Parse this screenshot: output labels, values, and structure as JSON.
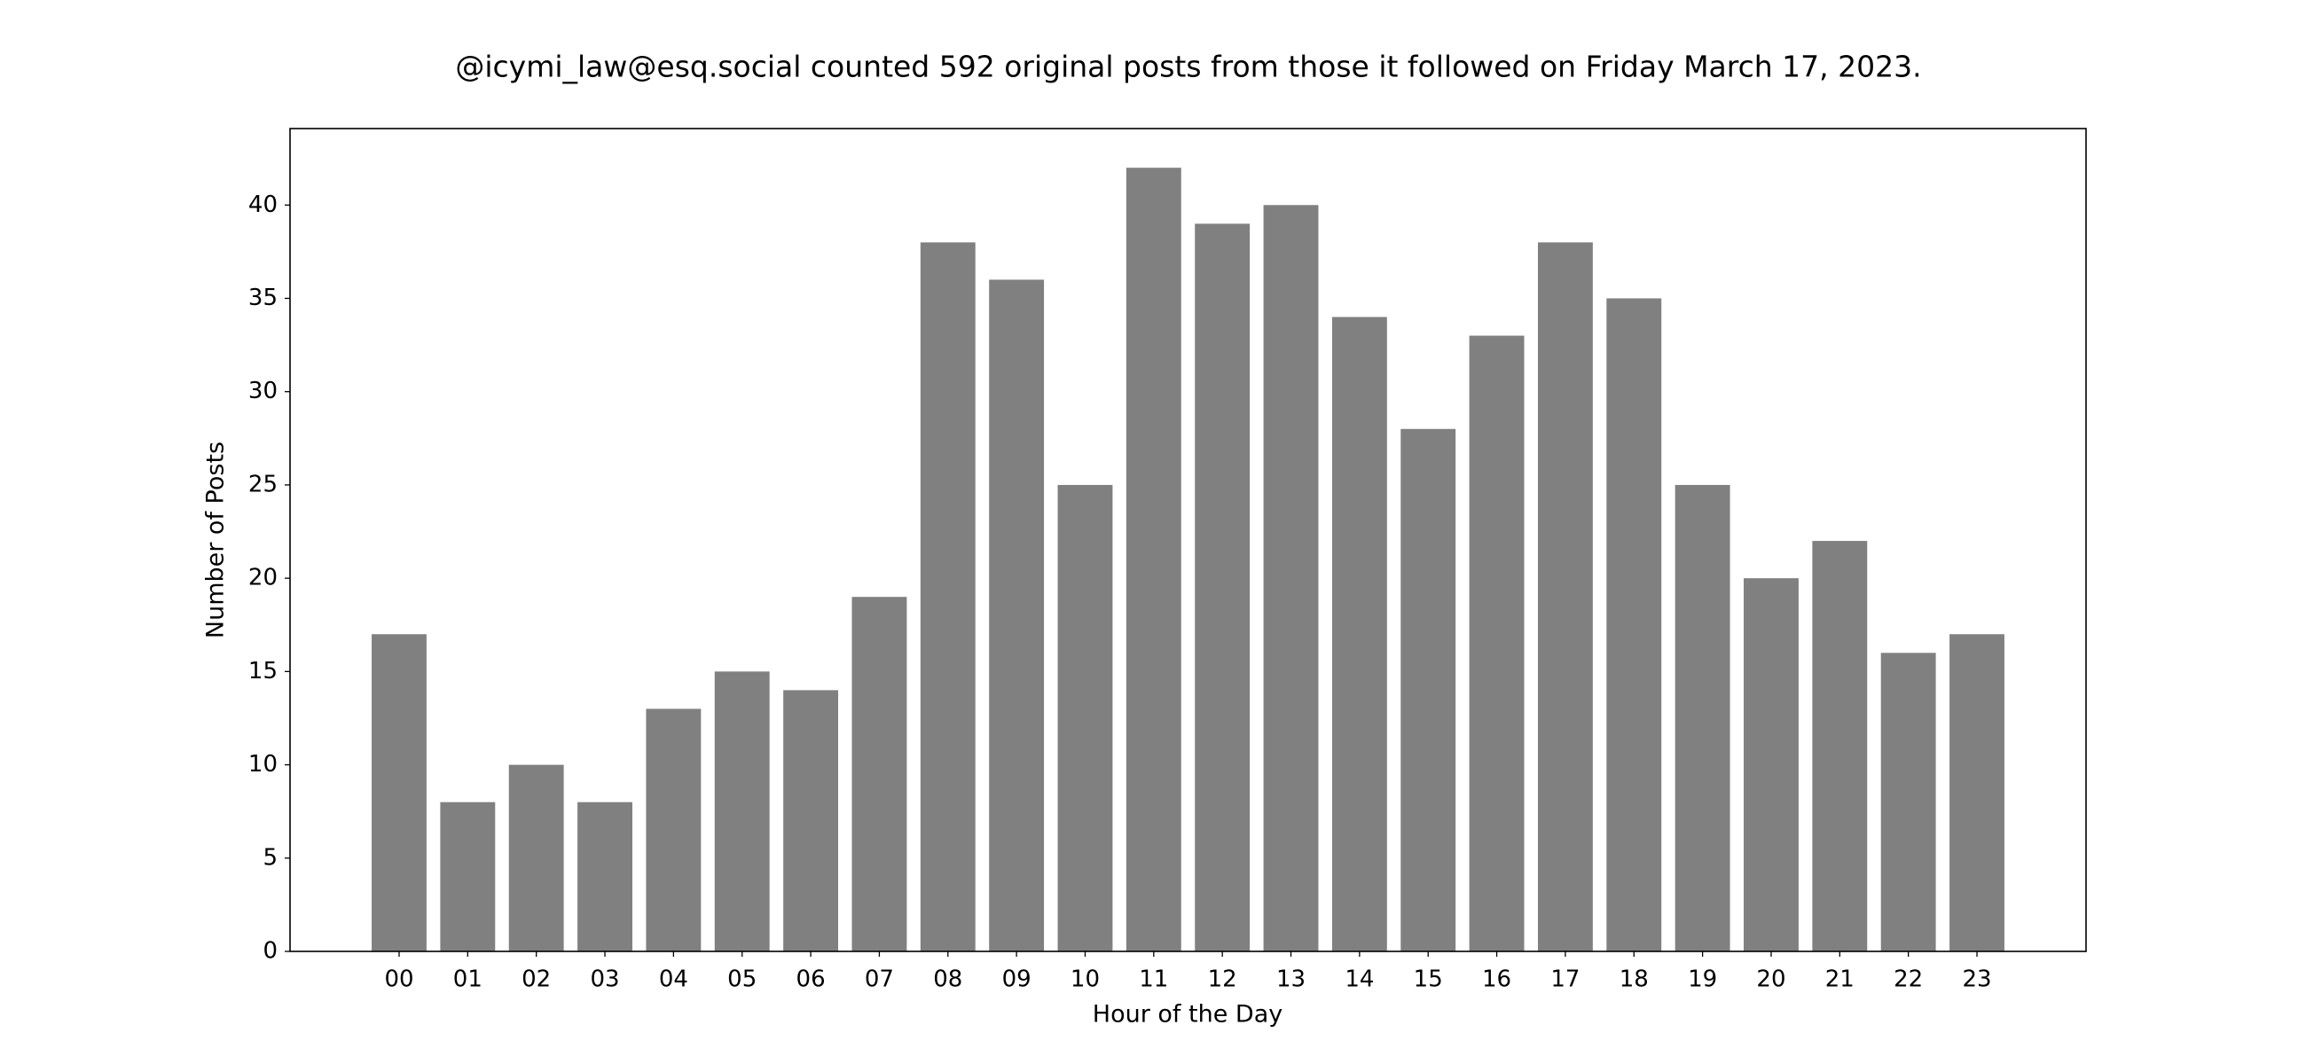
{
  "chart_data": {
    "type": "bar",
    "title": "@icymi_law@esq.social counted 592 original posts from those it followed on Friday March 17, 2023.",
    "xlabel": "Hour of the Day",
    "ylabel": "Number of Posts",
    "categories": [
      "00",
      "01",
      "02",
      "03",
      "04",
      "05",
      "06",
      "07",
      "08",
      "09",
      "10",
      "11",
      "12",
      "13",
      "14",
      "15",
      "16",
      "17",
      "18",
      "19",
      "20",
      "21",
      "22",
      "23"
    ],
    "values": [
      17,
      8,
      10,
      8,
      13,
      15,
      14,
      19,
      38,
      36,
      25,
      42,
      39,
      40,
      34,
      28,
      33,
      38,
      35,
      25,
      20,
      22,
      16,
      17
    ],
    "color": "#808080",
    "ylim": [
      0,
      44.1
    ],
    "yticks": [
      0,
      5,
      10,
      15,
      20,
      25,
      30,
      35,
      40
    ],
    "grid": false
  }
}
